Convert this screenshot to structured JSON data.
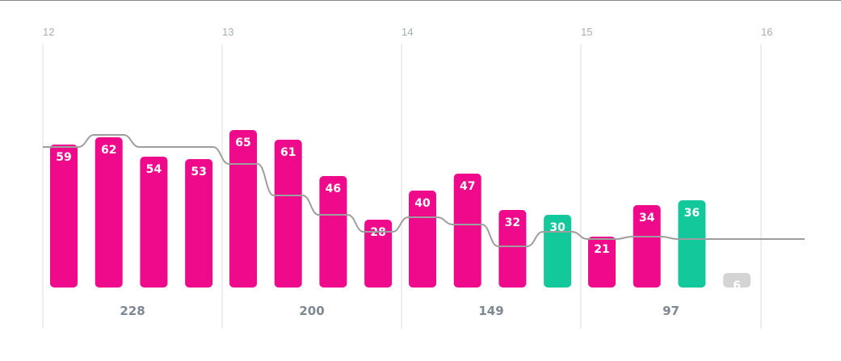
{
  "chart_data": {
    "type": "bar",
    "period_labels": [
      "12",
      "13",
      "14",
      "15",
      "16"
    ],
    "groups": [
      {
        "total": "228",
        "bars": [
          {
            "value": 59,
            "status": "normal"
          },
          {
            "value": 62,
            "status": "normal"
          },
          {
            "value": 54,
            "status": "normal"
          },
          {
            "value": 53,
            "status": "normal"
          }
        ]
      },
      {
        "total": "200",
        "bars": [
          {
            "value": 65,
            "status": "normal"
          },
          {
            "value": 61,
            "status": "normal"
          },
          {
            "value": 46,
            "status": "normal"
          },
          {
            "value": 28,
            "status": "normal"
          }
        ]
      },
      {
        "total": "149",
        "bars": [
          {
            "value": 40,
            "status": "normal"
          },
          {
            "value": 47,
            "status": "normal"
          },
          {
            "value": 32,
            "status": "normal"
          },
          {
            "value": 30,
            "status": "highlight"
          }
        ]
      },
      {
        "total": "97",
        "bars": [
          {
            "value": 21,
            "status": "normal"
          },
          {
            "value": 34,
            "status": "normal"
          },
          {
            "value": 36,
            "status": "highlight"
          },
          {
            "value": 6,
            "status": "partial"
          }
        ]
      }
    ],
    "trend_line": [
      58,
      63,
      58,
      58,
      51,
      38,
      30,
      23,
      29,
      26,
      17,
      23,
      20,
      21,
      20
    ],
    "value_max": 70,
    "colors": {
      "normal": "#ef0a8b",
      "highlight": "#13c99c",
      "partial": "#d4d4d4",
      "trend": "#9e9e9e",
      "gridline": "#dddddd"
    }
  }
}
